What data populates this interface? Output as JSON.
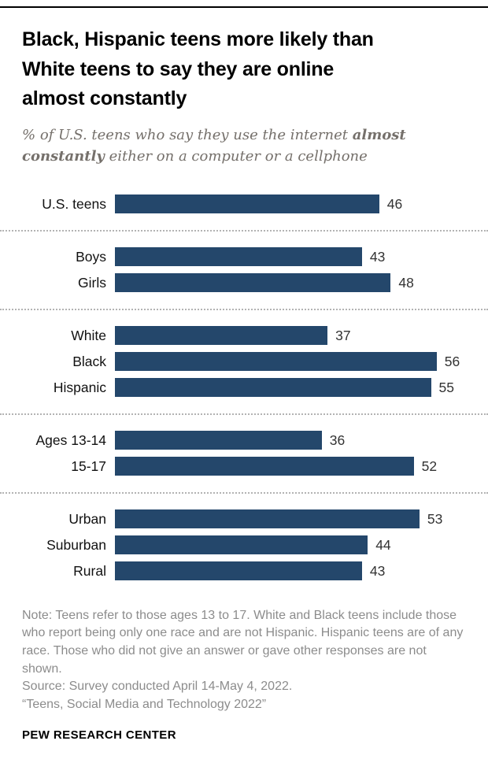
{
  "header": {
    "title_lines": [
      "Black, Hispanic teens more likely than",
      "White teens to say they are online",
      "almost constantly"
    ],
    "subtitle_pre": "% of U.S. teens who say they use the internet ",
    "subtitle_bold": "almost constantly",
    "subtitle_post": " either on a computer or a cellphone"
  },
  "chart_data": {
    "type": "bar",
    "orientation": "horizontal",
    "title": "Black, Hispanic teens more likely than White teens to say they are online almost constantly",
    "subtitle": "% of U.S. teens who say they use the internet almost constantly either on a computer or a cellphone",
    "value_unit": "%",
    "xlim": [
      0,
      60
    ],
    "bar_color": "#24476b",
    "grid": false,
    "legend": "none",
    "categories": [
      "U.S. teens",
      "Boys",
      "Girls",
      "White",
      "Black",
      "Hispanic",
      "Ages 13-14",
      "15-17",
      "Urban",
      "Suburban",
      "Rural"
    ],
    "values": [
      46,
      43,
      48,
      37,
      56,
      55,
      36,
      52,
      53,
      44,
      43
    ],
    "groups": [
      {
        "rows": [
          {
            "label": "U.S. teens",
            "value": 46
          }
        ]
      },
      {
        "rows": [
          {
            "label": "Boys",
            "value": 43
          },
          {
            "label": "Girls",
            "value": 48
          }
        ]
      },
      {
        "rows": [
          {
            "label": "White",
            "value": 37
          },
          {
            "label": "Black",
            "value": 56
          },
          {
            "label": "Hispanic",
            "value": 55
          }
        ]
      },
      {
        "rows": [
          {
            "label": "Ages 13-14",
            "value": 36
          },
          {
            "label": "15-17",
            "value": 52
          }
        ]
      },
      {
        "rows": [
          {
            "label": "Urban",
            "value": 53
          },
          {
            "label": "Suburban",
            "value": 44
          },
          {
            "label": "Rural",
            "value": 43
          }
        ]
      }
    ]
  },
  "footer": {
    "note": "Note: Teens refer to those ages 13 to 17. White and Black teens include those who report being only one race and are not Hispanic. Hispanic teens are of any race. Those who did not give an answer or gave other responses are not shown.",
    "source": "Source: Survey conducted April 14-May 4, 2022.",
    "report": "“Teens, Social Media and Technology 2022”",
    "brand": "PEW RESEARCH CENTER"
  }
}
